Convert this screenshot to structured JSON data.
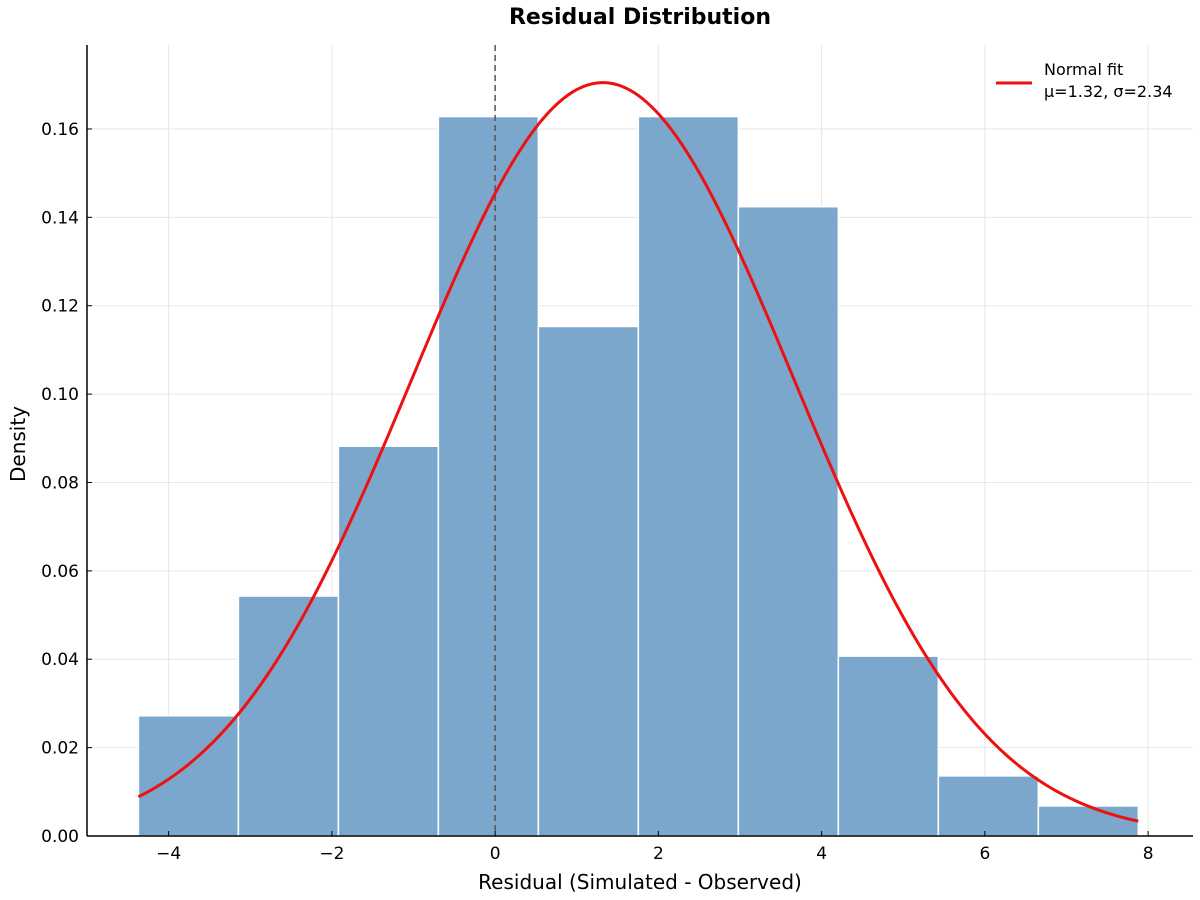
{
  "chart_data": {
    "type": "bar",
    "title": "Residual Distribution",
    "xlabel": "Residual (Simulated - Observed)",
    "ylabel": "Density",
    "xlim": [
      -5.0,
      8.55
    ],
    "ylim": [
      0.0,
      0.179
    ],
    "grid": true,
    "x_ticks": [
      -4,
      -2,
      0,
      2,
      4,
      6,
      8
    ],
    "x_tick_labels": [
      "−4",
      "−2",
      "0",
      "2",
      "4",
      "6",
      "8"
    ],
    "y_ticks": [
      0.0,
      0.02,
      0.04,
      0.06,
      0.08,
      0.1,
      0.12,
      0.14,
      0.16
    ],
    "y_tick_labels": [
      "0.00",
      "0.02",
      "0.04",
      "0.06",
      "0.08",
      "0.10",
      "0.12",
      "0.14",
      "0.16"
    ],
    "histogram": {
      "bin_edges": [
        -4.37,
        -3.145,
        -1.92,
        -0.695,
        0.53,
        1.755,
        2.98,
        4.205,
        5.43,
        6.655,
        7.88
      ],
      "densities": [
        0.0272,
        0.0543,
        0.0882,
        0.1628,
        0.1153,
        0.1628,
        0.1424,
        0.0407,
        0.0136,
        0.0068
      ],
      "color": "#7ba7cc",
      "edge_color": "#ffffff"
    },
    "series": [
      {
        "name": "Normal fit",
        "type": "line",
        "distribution": "normal",
        "mu": 1.32,
        "sigma": 2.34,
        "x_range": [
          -4.37,
          7.88
        ],
        "color": "#ee1111"
      }
    ],
    "reference_line": {
      "x": 0,
      "style": "dashed",
      "color": "#555555"
    },
    "legend": {
      "position": "top-right",
      "entries": [
        {
          "label": "Normal fit",
          "params": "μ=1.32, σ=2.34",
          "color": "#ee1111"
        }
      ]
    }
  }
}
